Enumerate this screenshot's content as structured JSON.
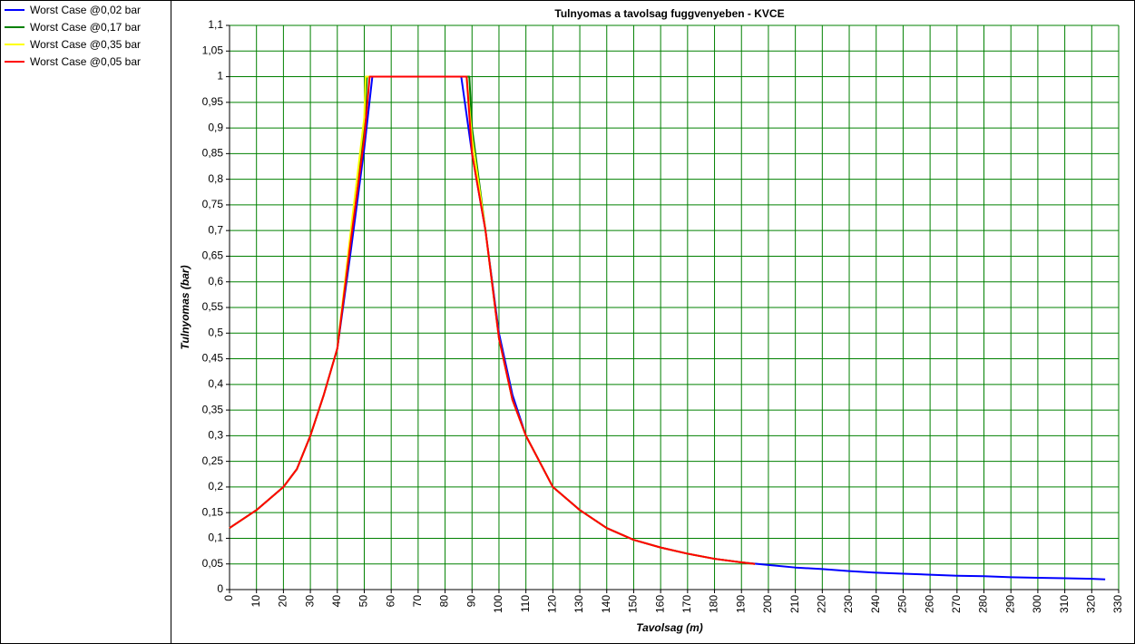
{
  "chart_data": {
    "type": "line",
    "title": "Tulnyomas a tavolsag fuggvenyeben - KVCE",
    "x_label": "Tavolsag (m)",
    "y_label": "Tulnyomas (bar)",
    "grid": true,
    "xlim": [
      0,
      330
    ],
    "xticks": [
      0,
      10,
      20,
      30,
      40,
      50,
      60,
      70,
      80,
      90,
      100,
      110,
      120,
      130,
      140,
      150,
      160,
      170,
      180,
      190,
      200,
      210,
      220,
      230,
      240,
      250,
      260,
      270,
      280,
      290,
      300,
      310,
      320,
      330
    ],
    "ylim": [
      0,
      1.1
    ],
    "yticks": [
      0,
      {
        "value": 0.05,
        "label": "0,05"
      },
      {
        "value": 0.1,
        "label": "0,1"
      },
      {
        "value": 0.15,
        "label": "0,15"
      },
      {
        "value": 0.2,
        "label": "0,2"
      },
      {
        "value": 0.25,
        "label": "0,25"
      },
      {
        "value": 0.3,
        "label": "0,3"
      },
      {
        "value": 0.35,
        "label": "0,35"
      },
      {
        "value": 0.4,
        "label": "0,4"
      },
      {
        "value": 0.45,
        "label": "0,45"
      },
      {
        "value": 0.5,
        "label": "0,5"
      },
      {
        "value": 0.55,
        "label": "0,55"
      },
      {
        "value": 0.6,
        "label": "0,6"
      },
      {
        "value": 0.65,
        "label": "0,65"
      },
      {
        "value": 0.7,
        "label": "0,7"
      },
      {
        "value": 0.75,
        "label": "0,75"
      },
      {
        "value": 0.8,
        "label": "0,8"
      },
      {
        "value": 0.85,
        "label": "0,85"
      },
      {
        "value": 0.9,
        "label": "0,9"
      },
      {
        "value": 0.95,
        "label": "0,95"
      },
      1,
      {
        "value": 1.05,
        "label": "1,05"
      },
      {
        "value": 1.1,
        "label": "1,1"
      }
    ],
    "series": [
      {
        "name": "Worst Case @0,02 bar",
        "color": "#0000ff",
        "x": [
          0,
          10,
          20,
          25,
          30,
          35,
          40,
          45,
          50,
          53,
          86,
          90,
          95,
          100,
          105,
          110,
          120,
          130,
          140,
          150,
          160,
          170,
          180,
          190,
          200,
          210,
          220,
          230,
          240,
          250,
          260,
          270,
          280,
          290,
          300,
          310,
          320,
          325
        ],
        "values": [
          0.12,
          0.155,
          0.2,
          0.235,
          0.3,
          0.38,
          0.47,
          0.66,
          0.86,
          1,
          1,
          0.85,
          0.7,
          0.5,
          0.38,
          0.3,
          0.2,
          0.155,
          0.12,
          0.097,
          0.082,
          0.07,
          0.06,
          0.053,
          0.048,
          0.043,
          0.04,
          0.036,
          0.033,
          0.031,
          0.029,
          0.027,
          0.026,
          0.024,
          0.023,
          0.022,
          0.021,
          0.02
        ]
      },
      {
        "name": "Worst Case @0,17 bar",
        "color": "#008000",
        "x": [
          0,
          10,
          20,
          25,
          30,
          35,
          40,
          45,
          50,
          51,
          89,
          90,
          95,
          100,
          105,
          110,
          120,
          130,
          140,
          150,
          160,
          170,
          180,
          190,
          195
        ],
        "values": [
          0.12,
          0.155,
          0.2,
          0.235,
          0.3,
          0.38,
          0.47,
          0.68,
          0.9,
          1,
          1,
          0.9,
          0.7,
          0.49,
          0.37,
          0.3,
          0.2,
          0.155,
          0.12,
          0.097,
          0.082,
          0.07,
          0.06,
          0.053,
          0.05
        ]
      },
      {
        "name": "Worst Case @0,35 bar",
        "color": "#ffff00",
        "x": [
          0,
          10,
          20,
          25,
          30,
          35,
          40,
          45,
          50,
          50.5,
          88,
          90,
          95,
          100,
          105,
          110,
          120,
          130,
          140,
          150,
          160,
          170,
          180,
          190,
          195
        ],
        "values": [
          0.12,
          0.155,
          0.2,
          0.235,
          0.3,
          0.38,
          0.47,
          0.7,
          0.92,
          1,
          1,
          0.88,
          0.7,
          0.49,
          0.37,
          0.3,
          0.2,
          0.155,
          0.12,
          0.097,
          0.082,
          0.07,
          0.06,
          0.053,
          0.05
        ]
      },
      {
        "name": "Worst Case @0,05 bar",
        "color": "#ff0000",
        "x": [
          0,
          10,
          20,
          25,
          30,
          35,
          40,
          45,
          50,
          52,
          88,
          90,
          95,
          100,
          105,
          110,
          120,
          130,
          140,
          150,
          160,
          170,
          180,
          190,
          195
        ],
        "values": [
          0.12,
          0.155,
          0.2,
          0.235,
          0.3,
          0.38,
          0.47,
          0.68,
          0.88,
          1,
          1,
          0.85,
          0.7,
          0.49,
          0.37,
          0.3,
          0.2,
          0.155,
          0.12,
          0.097,
          0.082,
          0.07,
          0.06,
          0.053,
          0.05
        ]
      }
    ]
  }
}
